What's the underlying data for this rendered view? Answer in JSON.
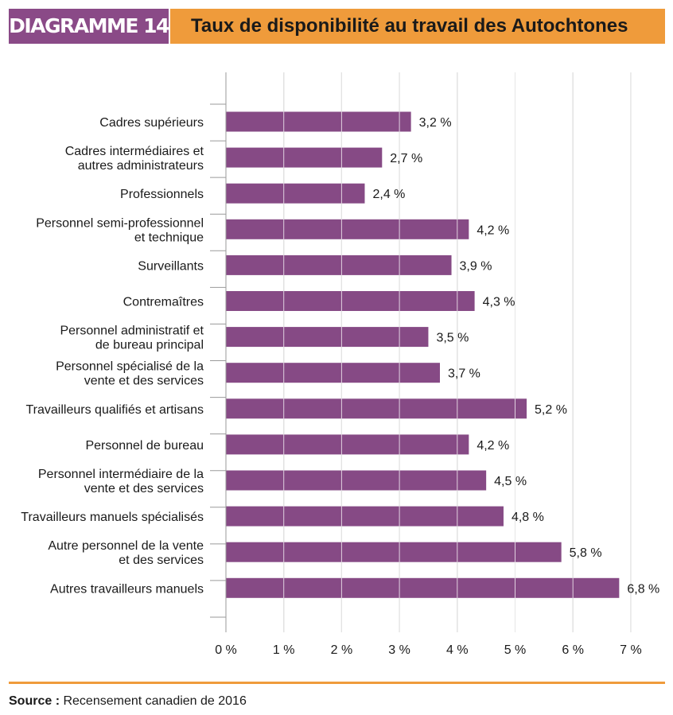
{
  "header": {
    "badge": "DIAGRAMME 14",
    "title": "Taux de disponibilité au travail des Autochtones"
  },
  "colors": {
    "bar": "#864a85",
    "title_bar": "#ef9b3b",
    "badge": "#8a4a87"
  },
  "chart_data": {
    "type": "bar",
    "orientation": "horizontal",
    "title": "Taux de disponibilité au travail des Autochtones",
    "categories": [
      [
        "Cadres supérieurs"
      ],
      [
        "Cadres intermédiaires et",
        "autres administrateurs"
      ],
      [
        "Professionnels"
      ],
      [
        "Personnel semi-professionnel",
        "et technique"
      ],
      [
        "Surveillants"
      ],
      [
        "Contremaîtres"
      ],
      [
        "Personnel administratif et",
        "de bureau principal"
      ],
      [
        "Personnel spécialisé de la",
        "vente et des services"
      ],
      [
        "Travailleurs qualifiés et artisans"
      ],
      [
        "Personnel de bureau"
      ],
      [
        "Personnel intermédiaire de la",
        "vente et des services"
      ],
      [
        "Travailleurs manuels spécialisés"
      ],
      [
        "Autre personnel de la vente",
        "et des services"
      ],
      [
        "Autres travailleurs manuels"
      ]
    ],
    "values": [
      3.2,
      2.7,
      2.4,
      4.2,
      3.9,
      4.3,
      3.5,
      3.7,
      5.2,
      4.2,
      4.5,
      4.8,
      5.8,
      6.8
    ],
    "value_labels": [
      "3,2 %",
      "2,7 %",
      "2,4 %",
      "4,2 %",
      "3,9 %",
      "4,3 %",
      "3,5 %",
      "3,7 %",
      "5,2 %",
      "4,2 %",
      "4,5 %",
      "4,8 %",
      "5,8 %",
      "6,8 %"
    ],
    "xticks": [
      0,
      1,
      2,
      3,
      4,
      5,
      6,
      7
    ],
    "xtick_labels": [
      "0 %",
      "1 %",
      "2 %",
      "3 %",
      "4 %",
      "5 %",
      "6 %",
      "7 %"
    ],
    "xlim": [
      0,
      7
    ],
    "grid": "vertical"
  },
  "footer": {
    "source_label": "Source :",
    "source_text": " Recensement canadien de 2016"
  }
}
